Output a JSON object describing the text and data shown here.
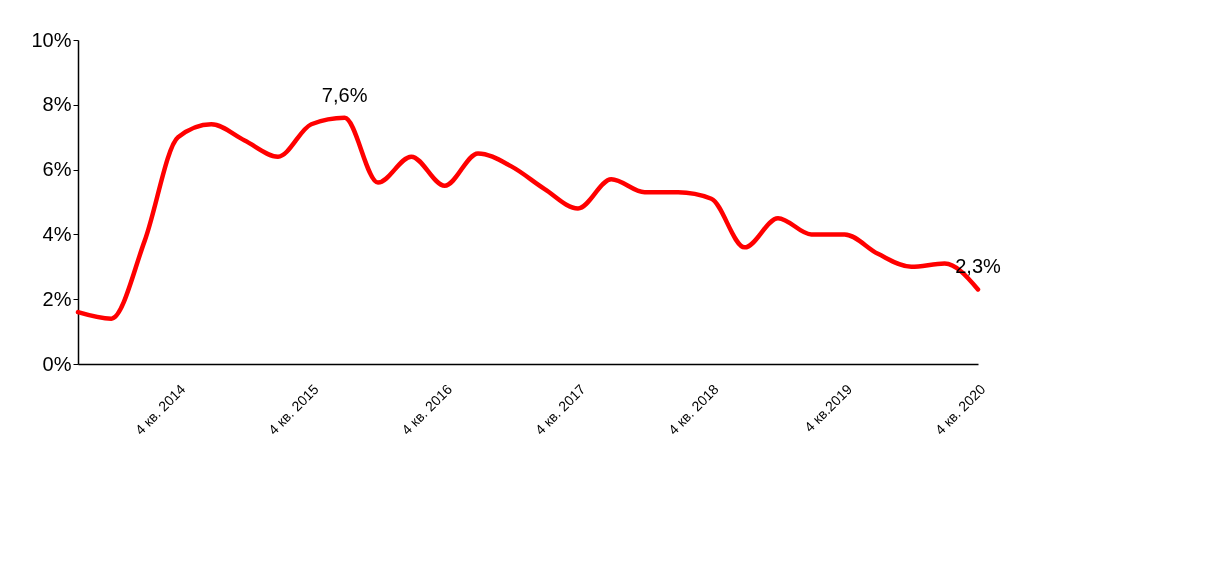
{
  "chart_data": {
    "type": "line",
    "categories": [
      null,
      null,
      null,
      "4 кв. 2014",
      null,
      null,
      null,
      "4 кв. 2015",
      null,
      null,
      null,
      "4 кв. 2016",
      null,
      null,
      null,
      "4 кв. 2017",
      null,
      null,
      null,
      "4 кв. 2018",
      null,
      null,
      null,
      "4 кв.2019",
      null,
      null,
      null,
      "4 кв. 2020"
    ],
    "series": [
      {
        "color": "#ff0000",
        "values": [
          1.6,
          1.4,
          3.8,
          7.0,
          7.4,
          6.9,
          6.4,
          7.4,
          7.6,
          5.6,
          6.4,
          5.5,
          6.5,
          6.1,
          5.4,
          4.8,
          5.7,
          5.3,
          5.3,
          5.1,
          3.6,
          4.5,
          4.0,
          4.0,
          3.4,
          3.0,
          3.1,
          2.3
        ],
        "value_labels": [
          null,
          null,
          null,
          null,
          null,
          null,
          null,
          null,
          "7,6%",
          null,
          null,
          null,
          null,
          null,
          null,
          null,
          null,
          null,
          null,
          null,
          null,
          null,
          null,
          null,
          null,
          null,
          null,
          "2,3%"
        ]
      }
    ],
    "ylim": [
      0,
      10
    ],
    "yticks": [
      {
        "value": 0,
        "label": "0%"
      },
      {
        "value": 2,
        "label": "2%"
      },
      {
        "value": 4,
        "label": "4%"
      },
      {
        "value": 6,
        "label": "6%"
      },
      {
        "value": 8,
        "label": "8%"
      },
      {
        "value": 10,
        "label": "10%"
      }
    ],
    "grid": false,
    "marker": "none",
    "line_style": "solid"
  }
}
